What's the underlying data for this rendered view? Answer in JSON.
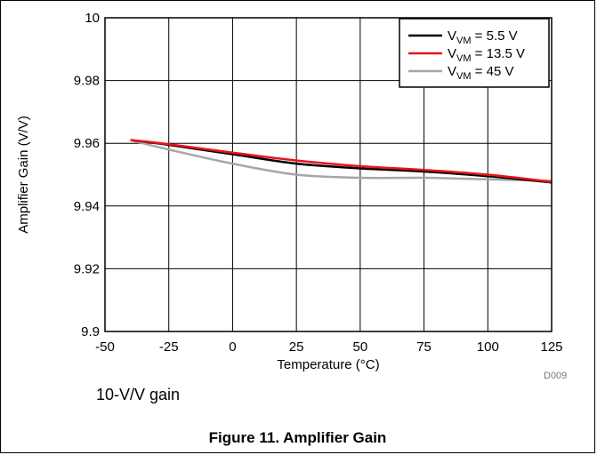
{
  "chart_data": {
    "type": "line",
    "ylabel": "Amplifier Gain (V/V)",
    "xlabel": "Temperature (°C)",
    "xlim": [
      -50,
      125
    ],
    "ylim": [
      9.9,
      10.0
    ],
    "xticks": [
      -50,
      -25,
      0,
      25,
      50,
      75,
      100,
      125
    ],
    "xtick_labels": [
      "-50",
      "-25",
      "0",
      "25",
      "50",
      "75",
      "100",
      "125"
    ],
    "yticks": [
      9.9,
      9.92,
      9.94,
      9.96,
      9.98,
      10.0
    ],
    "ytick_labels": [
      "9.9",
      "9.92",
      "9.94",
      "9.96",
      "9.98",
      "10"
    ],
    "grid": true,
    "legend_position": "top-right",
    "series": [
      {
        "name": "VVM = 5.5 V",
        "name_main": "V",
        "name_sub": "VM",
        "name_rest": " = 5.5 V",
        "color": "#000000",
        "x": [
          -40,
          -25,
          0,
          25,
          50,
          75,
          100,
          125
        ],
        "y": [
          9.961,
          9.9595,
          9.9565,
          9.9535,
          9.952,
          9.951,
          9.9495,
          9.9475
        ]
      },
      {
        "name": "VVM = 13.5 V",
        "name_main": "V",
        "name_sub": "VM",
        "name_rest": " = 13.5 V",
        "color": "#e8141b",
        "x": [
          -40,
          -25,
          0,
          25,
          50,
          75,
          100,
          125
        ],
        "y": [
          9.961,
          9.9597,
          9.957,
          9.9545,
          9.9527,
          9.9515,
          9.95,
          9.9477
        ]
      },
      {
        "name": "VVM = 45 V",
        "name_main": "V",
        "name_sub": "VM",
        "name_rest": " = 45 V",
        "color": "#a6a6a6",
        "x": [
          -40,
          -25,
          0,
          25,
          50,
          75,
          100,
          125
        ],
        "y": [
          9.961,
          9.958,
          9.9535,
          9.95,
          9.949,
          9.949,
          9.9485,
          9.948
        ]
      }
    ]
  },
  "note": "10-V/V gain",
  "caption": "Figure 11. Amplifier Gain",
  "figure_ref": "D009"
}
